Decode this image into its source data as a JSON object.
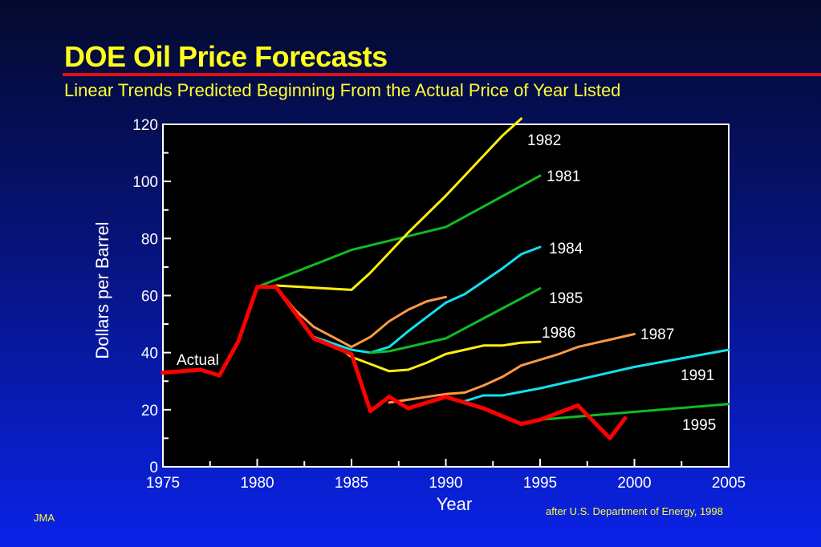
{
  "page": {
    "title": "DOE Oil Price Forecasts",
    "subtitle": "Linear Trends Predicted Beginning From the Actual Price of Year Listed",
    "footer_left": "JMA",
    "footer_right": "after U.S. Department of Energy, 1998"
  },
  "colors": {
    "title": "#ffff1a",
    "rule": "#e0101a",
    "plot_bg": "#000000",
    "axis_text": "#ffffff"
  },
  "chart_data": {
    "type": "line",
    "title": "",
    "xlabel": "Year",
    "ylabel": "Dollars per Barrel",
    "xlim": [
      1975,
      2005
    ],
    "ylim": [
      0,
      120
    ],
    "x_ticks": [
      1975,
      1980,
      1985,
      1990,
      1995,
      2000,
      2005
    ],
    "y_ticks": [
      0,
      20,
      40,
      60,
      80,
      100,
      120
    ],
    "grid": false,
    "series": [
      {
        "name": "Actual",
        "color": "#ff0000",
        "width": 5,
        "x": [
          1975,
          1977,
          1978,
          1979,
          1980,
          1981,
          1983,
          1985,
          1986,
          1987,
          1988,
          1990,
          1991,
          1992,
          1994,
          1995,
          1997,
          1998.7,
          1999.5
        ],
        "y": [
          33,
          34,
          32,
          44,
          63,
          63,
          45,
          39.5,
          19.5,
          24.5,
          20.5,
          24.5,
          22.5,
          20.5,
          15,
          16.5,
          21.5,
          10,
          17
        ]
      },
      {
        "name": "1981",
        "color": "#11bb22",
        "width": 3,
        "x": [
          1980,
          1985,
          1990,
          1995
        ],
        "y": [
          63,
          76,
          84,
          102
        ]
      },
      {
        "name": "1982",
        "color": "#ffee11",
        "width": 3,
        "x": [
          1981,
          1985,
          1986,
          1987,
          1988,
          1989,
          1990,
          1991,
          1992,
          1993,
          1994
        ],
        "y": [
          63.5,
          62,
          68,
          75,
          82,
          88.5,
          95,
          102,
          109,
          116,
          122
        ]
      },
      {
        "name": "1984",
        "color": "#11e0ee",
        "width": 3,
        "x": [
          1983,
          1985,
          1986,
          1987,
          1988,
          1989,
          1990,
          1991,
          1992,
          1993,
          1994,
          1995
        ],
        "y": [
          45.5,
          41,
          40,
          42,
          47.5,
          52.5,
          57.5,
          60.5,
          65,
          69.5,
          74.5,
          77
        ]
      },
      {
        "name": "1985",
        "color": "#11bb22",
        "width": 3,
        "x": [
          1986,
          1987,
          1988,
          1989,
          1990,
          1991,
          1992,
          1993,
          1994,
          1995
        ],
        "y": [
          40,
          40.5,
          42,
          43.5,
          45,
          48.5,
          52,
          55.5,
          59,
          62.5
        ]
      },
      {
        "name": "1986",
        "color": "#ffee11",
        "width": 3,
        "x": [
          1984.5,
          1985,
          1986,
          1987,
          1988,
          1989,
          1990,
          1991,
          1992,
          1993,
          1994,
          1995
        ],
        "y": [
          41,
          38.5,
          36,
          33.5,
          34,
          36.5,
          39.5,
          41,
          42.5,
          42.5,
          43.5,
          43.8
        ]
      },
      {
        "name": "1987",
        "color": "#ff9944",
        "width": 3,
        "x": [
          1987,
          1988,
          1989,
          1990,
          1991,
          1992,
          1993,
          1994,
          1995,
          1996,
          1997,
          1998,
          1999,
          2000
        ],
        "y": [
          22.5,
          23.5,
          24.5,
          25.5,
          26,
          28.5,
          31.5,
          35.5,
          37.5,
          39.5,
          42,
          43.5,
          45,
          46.5
        ]
      },
      {
        "name": "",
        "color": "#ff9944",
        "width": 3,
        "x": [
          1981,
          1982,
          1983,
          1985,
          1986,
          1987,
          1988,
          1989,
          1990
        ],
        "y": [
          63,
          55,
          49,
          42,
          45.5,
          51,
          55,
          58,
          59.5
        ]
      },
      {
        "name": "1991",
        "color": "#11e0ee",
        "width": 3,
        "x": [
          1991,
          1992,
          1993,
          1995,
          1997,
          2000,
          2005
        ],
        "y": [
          23,
          25,
          25,
          27.5,
          30.5,
          35,
          41
        ]
      },
      {
        "name": "1995",
        "color": "#11bb22",
        "width": 3,
        "x": [
          1995,
          2005
        ],
        "y": [
          16.5,
          22
        ]
      }
    ],
    "annotations": [
      {
        "text": "Actual"
      },
      {
        "text": "1982"
      },
      {
        "text": "1981"
      },
      {
        "text": "1984"
      },
      {
        "text": "1985"
      },
      {
        "text": "1986"
      },
      {
        "text": "1987"
      },
      {
        "text": "1991"
      },
      {
        "text": "1995"
      }
    ]
  }
}
